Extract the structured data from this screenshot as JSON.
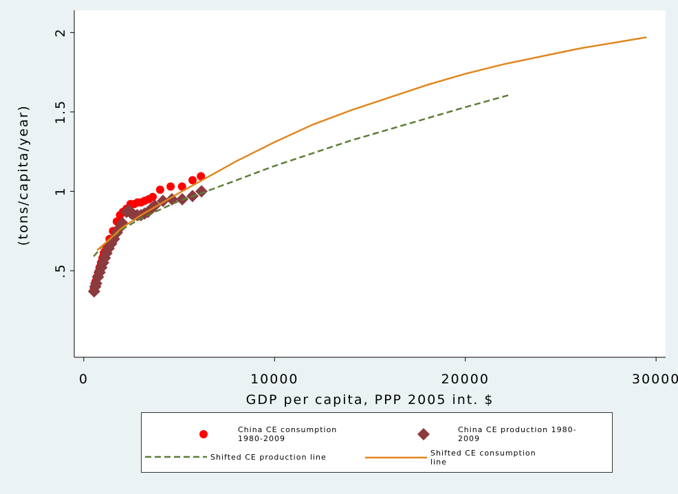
{
  "chart_data": {
    "type": "scatter",
    "x_label": "GDP per capita, PPP 2005 int. $",
    "y_label": "(tons/capita/year)",
    "xlim": [
      -500,
      30500
    ],
    "xticks": [
      0,
      10000,
      20000,
      30000
    ],
    "ylim": [
      -0.045,
      2.14
    ],
    "yticks": [
      {
        "value": 0.5,
        "label": ".5"
      },
      1,
      1.5,
      2
    ],
    "series": [
      {
        "name": "China CE consumption 1980-2009",
        "color": "#ff0000",
        "marker": "circle",
        "x": [
          520,
          560,
          610,
          680,
          760,
          830,
          900,
          980,
          1050,
          1100,
          1200,
          1350,
          1530,
          1730,
          1900,
          2050,
          2240,
          2450,
          2640,
          2820,
          3000,
          3180,
          3400,
          3610,
          4000,
          4550,
          5150,
          5700,
          6140
        ],
        "values": [
          0.38,
          0.4,
          0.43,
          0.46,
          0.49,
          0.52,
          0.55,
          0.58,
          0.61,
          0.62,
          0.65,
          0.7,
          0.75,
          0.81,
          0.85,
          0.87,
          0.89,
          0.92,
          0.92,
          0.93,
          0.93,
          0.94,
          0.95,
          0.965,
          1.01,
          1.03,
          1.03,
          1.07,
          1.095
        ]
      },
      {
        "name": "China CE production 1980-2009",
        "color": "#8b3a3e",
        "marker": "diamond",
        "x": [
          540,
          600,
          650,
          740,
          830,
          920,
          1010,
          1100,
          1190,
          1300,
          1440,
          1580,
          1730,
          1880,
          2020,
          2240,
          2380,
          2500,
          2640,
          2800,
          3000,
          3180,
          3360,
          3540,
          3720,
          4150,
          4620,
          5160,
          5700,
          6170
        ],
        "values": [
          0.37,
          0.4,
          0.42,
          0.46,
          0.49,
          0.52,
          0.55,
          0.58,
          0.61,
          0.64,
          0.67,
          0.7,
          0.74,
          0.77,
          0.8,
          0.87,
          0.88,
          0.86,
          0.85,
          0.85,
          0.85,
          0.86,
          0.87,
          0.89,
          0.91,
          0.94,
          0.95,
          0.95,
          0.97,
          1.0
        ]
      },
      {
        "name": "Shifted CE production line",
        "color": "#5a7d36",
        "marker": "dash",
        "x": [
          520,
          1000,
          2000,
          3000,
          5000,
          6200,
          8000,
          10000,
          12000,
          14000,
          16000,
          18000,
          20000,
          22400
        ],
        "values": [
          0.59,
          0.66,
          0.76,
          0.83,
          0.94,
          0.99,
          1.07,
          1.16,
          1.24,
          1.32,
          1.39,
          1.46,
          1.53,
          1.61
        ]
      },
      {
        "name": "Shifted CE consumption line",
        "color": "#e0861c",
        "marker": "line",
        "x": [
          700,
          1000,
          2000,
          3000,
          5000,
          6500,
          8000,
          10000,
          12000,
          14000,
          16000,
          18000,
          20000,
          22000,
          24000,
          26000,
          28000,
          29500
        ],
        "values": [
          0.63,
          0.66,
          0.77,
          0.85,
          0.99,
          1.09,
          1.19,
          1.31,
          1.42,
          1.51,
          1.59,
          1.67,
          1.74,
          1.8,
          1.85,
          1.9,
          1.94,
          1.97
        ]
      }
    ]
  }
}
